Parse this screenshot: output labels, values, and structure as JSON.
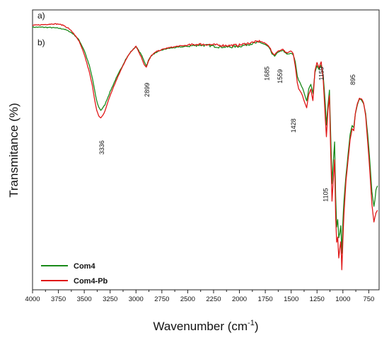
{
  "chart_data": {
    "type": "line",
    "title": "",
    "xlabel": "Wavenumber (cm",
    "xlabel_sup": "-1",
    "xlabel_close": ")",
    "ylabel": "Transmitance (%)",
    "xlim": [
      4000,
      650
    ],
    "ylim": [
      0,
      100
    ],
    "x_reversed": true,
    "y_ticks_shown": false,
    "grid": false,
    "legend_position": "bottom-left",
    "x_tick_labels": [
      "4000",
      "3750",
      "3500",
      "3250",
      "3000",
      "2750",
      "2500",
      "2250",
      "2000",
      "1750",
      "1500",
      "1250",
      "1000",
      "750"
    ],
    "panel_labels": [
      "a)",
      "b)"
    ],
    "annotations": [
      {
        "text": "3336",
        "x": 3336
      },
      {
        "text": "2899",
        "x": 2899
      },
      {
        "text": "1685",
        "x": 1685
      },
      {
        "text": "1559",
        "x": 1559
      },
      {
        "text": "1428",
        "x": 1428
      },
      {
        "text": "1159",
        "x": 1159
      },
      {
        "text": "1105",
        "x": 1105
      },
      {
        "text": "895",
        "x": 895
      }
    ],
    "series": [
      {
        "name": "Com4",
        "color": "#1a8a1a",
        "x": [
          4000,
          3900,
          3800,
          3750,
          3700,
          3650,
          3600,
          3550,
          3500,
          3450,
          3420,
          3400,
          3380,
          3360,
          3340,
          3320,
          3300,
          3280,
          3250,
          3200,
          3150,
          3100,
          3050,
          3000,
          2950,
          2920,
          2899,
          2880,
          2850,
          2800,
          2750,
          2700,
          2600,
          2500,
          2400,
          2300,
          2200,
          2100,
          2000,
          1900,
          1800,
          1750,
          1720,
          1700,
          1685,
          1660,
          1640,
          1600,
          1580,
          1559,
          1540,
          1500,
          1480,
          1460,
          1440,
          1428,
          1410,
          1390,
          1370,
          1350,
          1330,
          1310,
          1290,
          1270,
          1250,
          1230,
          1210,
          1190,
          1170,
          1159,
          1145,
          1130,
          1120,
          1105,
          1095,
          1080,
          1070,
          1060,
          1050,
          1040,
          1030,
          1020,
          1010,
          1000,
          990,
          970,
          950,
          930,
          910,
          895,
          880,
          860,
          840,
          820,
          800,
          780,
          760,
          740,
          720,
          700,
          690,
          680,
          665
        ],
        "y": [
          95.5,
          95.5,
          95.3,
          95.1,
          94.8,
          94.0,
          92.7,
          90.5,
          86.5,
          80.5,
          75.5,
          71.0,
          67.0,
          64.5,
          63.3,
          64.2,
          65.5,
          67.5,
          70.5,
          75.0,
          79.0,
          83.0,
          86.0,
          88.0,
          85.0,
          82.2,
          80.5,
          82.6,
          84.6,
          85.8,
          86.6,
          87.2,
          87.7,
          88.1,
          88.6,
          88.4,
          87.9,
          87.8,
          88.1,
          89.0,
          89.6,
          88.7,
          87.9,
          86.6,
          85.1,
          84.3,
          85.4,
          86.2,
          86.6,
          85.6,
          85.0,
          85.3,
          84.8,
          82.0,
          76.5,
          75.0,
          73.5,
          71.8,
          69.5,
          66.8,
          71.7,
          73.5,
          69.7,
          78.0,
          80.5,
          79.2,
          81.0,
          76.5,
          66.0,
          57.5,
          65.0,
          71.0,
          56.0,
          35.0,
          42.0,
          51.0,
          30.0,
          18.0,
          21.0,
          14.0,
          15.5,
          18.5,
          8.0,
          20.0,
          28.0,
          38.0,
          46.0,
          54.0,
          57.5,
          56.5,
          62.0,
          65.5,
          67.5,
          67.3,
          66.0,
          62.0,
          54.0,
          44.0,
          32.0,
          26.0,
          28.5,
          32.5,
          34.0
        ]
      },
      {
        "name": "Com4-Pb",
        "color": "#e01818",
        "x": [
          4000,
          3900,
          3800,
          3750,
          3700,
          3650,
          3600,
          3550,
          3500,
          3450,
          3420,
          3400,
          3380,
          3360,
          3340,
          3320,
          3300,
          3280,
          3250,
          3200,
          3150,
          3100,
          3050,
          3000,
          2950,
          2920,
          2899,
          2880,
          2850,
          2800,
          2750,
          2700,
          2600,
          2500,
          2400,
          2300,
          2200,
          2100,
          2000,
          1900,
          1800,
          1750,
          1720,
          1700,
          1685,
          1660,
          1640,
          1600,
          1580,
          1559,
          1540,
          1500,
          1480,
          1460,
          1440,
          1428,
          1410,
          1390,
          1370,
          1350,
          1330,
          1310,
          1290,
          1270,
          1250,
          1230,
          1210,
          1190,
          1170,
          1159,
          1145,
          1130,
          1120,
          1105,
          1095,
          1080,
          1070,
          1060,
          1050,
          1040,
          1030,
          1020,
          1010,
          1000,
          990,
          970,
          950,
          930,
          910,
          895,
          880,
          860,
          840,
          820,
          800,
          780,
          760,
          740,
          720,
          700,
          690,
          680,
          665
        ],
        "y": [
          96.2,
          96.5,
          96.8,
          96.7,
          96.2,
          95.0,
          93.0,
          90.0,
          85.0,
          78.0,
          72.5,
          67.5,
          63.5,
          61.0,
          60.2,
          61.3,
          63.0,
          65.5,
          69.0,
          74.0,
          78.5,
          82.8,
          86.0,
          88.2,
          84.0,
          81.0,
          80.0,
          82.2,
          84.6,
          86.1,
          86.8,
          87.4,
          88.1,
          88.5,
          88.9,
          88.8,
          88.5,
          88.4,
          88.6,
          89.4,
          90.1,
          89.2,
          88.4,
          87.1,
          85.6,
          84.8,
          85.9,
          86.7,
          87.0,
          86.0,
          85.4,
          86.3,
          85.2,
          80.5,
          74.0,
          71.8,
          70.6,
          69.0,
          66.3,
          64.2,
          69.5,
          71.5,
          67.0,
          78.6,
          81.7,
          79.8,
          82.0,
          75.0,
          60.0,
          53.0,
          63.0,
          69.0,
          50.0,
          28.0,
          35.0,
          44.0,
          22.0,
          12.0,
          14.0,
          6.0,
          9.5,
          12.5,
          1.5,
          13.0,
          23.0,
          36.0,
          44.0,
          52.0,
          56.0,
          55.5,
          62.0,
          66.0,
          68.0,
          67.8,
          66.2,
          61.0,
          51.0,
          40.0,
          27.0,
          20.0,
          22.0,
          23.5,
          24.5
        ]
      }
    ]
  }
}
